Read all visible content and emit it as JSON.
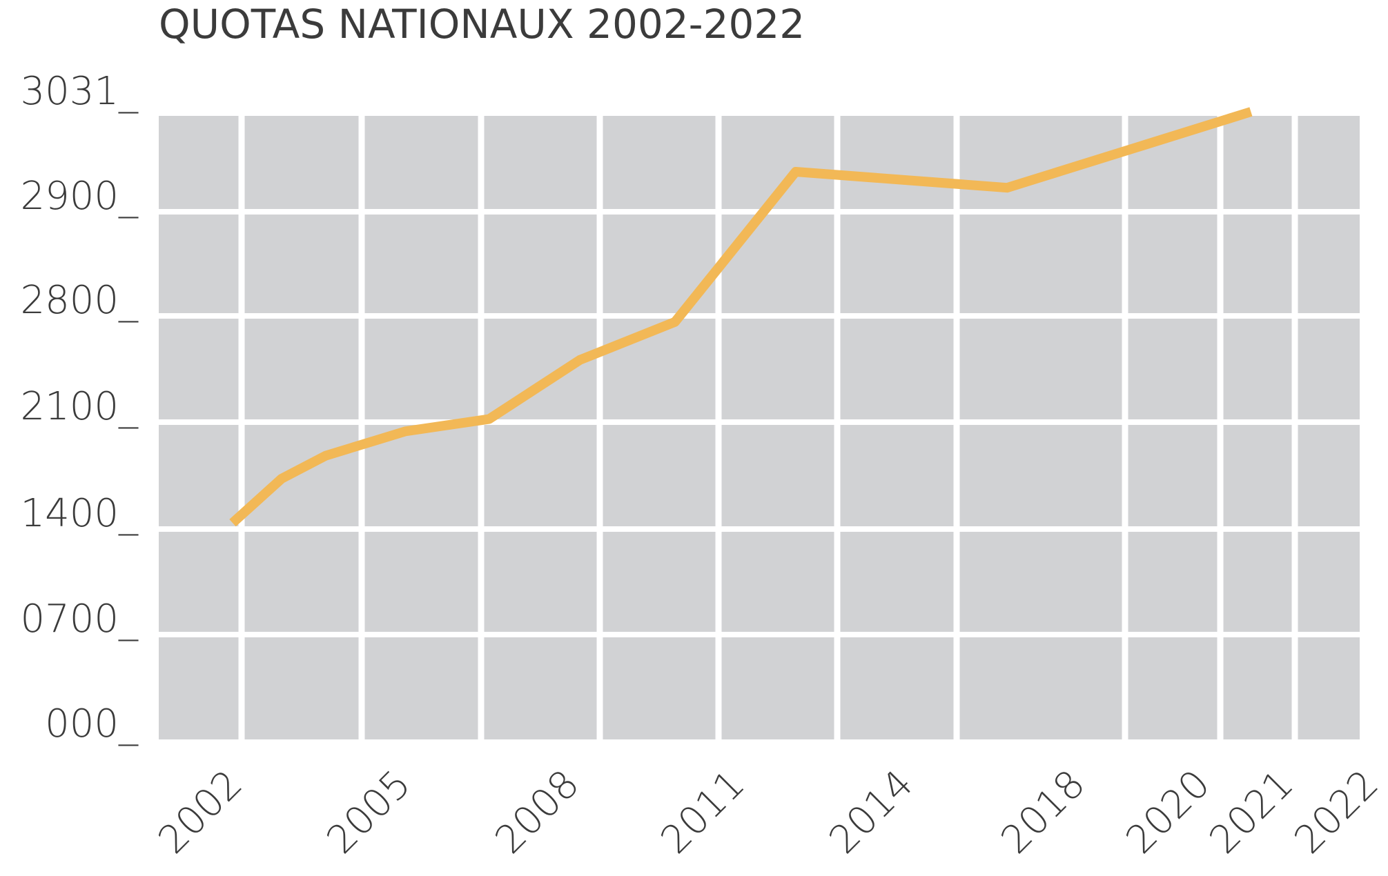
{
  "chart_data": {
    "type": "line",
    "title": "QUOTAS NATIONAUX 2002-2022",
    "xlabel": "",
    "ylabel": "",
    "grid": true,
    "y_tick_labels": [
      "000_",
      "0700_",
      "1400_",
      "2100_",
      "2800_",
      "2900_",
      "3031_"
    ],
    "x_tick_labels": [
      "2002",
      "2005",
      "2008",
      "2011",
      "2014",
      "2018",
      "2020",
      "2021",
      "2022"
    ],
    "series": [
      {
        "color": "#f2b856",
        "points": [
          {
            "x": 2001.9,
            "y": 1440
          },
          {
            "x": 2003.0,
            "y": 1730
          },
          {
            "x": 2004.1,
            "y": 1880
          },
          {
            "x": 2006.1,
            "y": 2040
          },
          {
            "x": 2008.2,
            "y": 2120
          },
          {
            "x": 2010.5,
            "y": 2510
          },
          {
            "x": 2012.9,
            "y": 2760
          },
          {
            "x": 2016.6,
            "y": 2950
          },
          {
            "x": 2020.3,
            "y": 2930
          },
          {
            "x": 2022.2,
            "y": 3025
          }
        ]
      }
    ],
    "colors": {
      "background": "#ffffff",
      "plot_area": "#d1d2d4",
      "grid": "#ffffff",
      "line": "#f2b856",
      "text": "#3b3b3b"
    }
  }
}
